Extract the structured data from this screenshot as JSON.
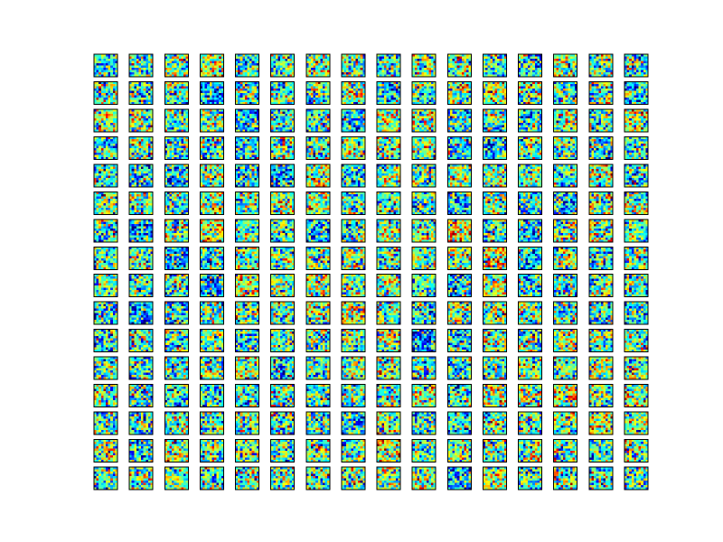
{
  "grid": {
    "rows": 16,
    "columns": 16
  }
}
